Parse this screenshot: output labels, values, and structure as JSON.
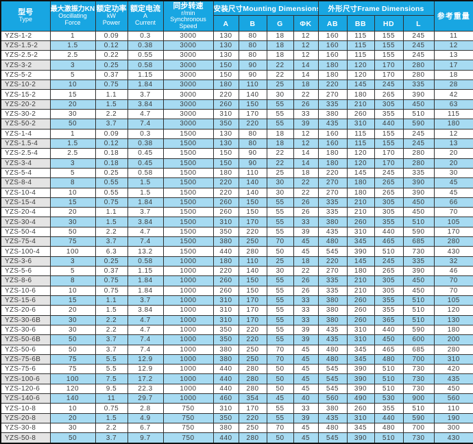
{
  "colors": {
    "header-bg": "#18a6e2",
    "row-alt-bg": "#a7dbf2",
    "name-alt-bg": "#e4e4e4",
    "header-text": "#ffffff",
    "body-text": "#3d3d3d",
    "grid-line": "#2f2f2f",
    "frame-line": "#111111"
  },
  "table": {
    "header": {
      "type": {
        "zh": "型号",
        "en": "Type"
      },
      "force": {
        "zh": "最大激振力KN",
        "en1": "Oscillating",
        "en2": "Force"
      },
      "power": {
        "zh": "额定功率",
        "unit": "kW",
        "en": "Power"
      },
      "current": {
        "zh": "额定电流",
        "unit": "A",
        "en": "Current"
      },
      "speed": {
        "zh": "同步转速",
        "unit": "r/min",
        "en1": "Synchronous",
        "en2": "Speed"
      },
      "mounting_group": "安装尺寸Mounting Dimensions",
      "frame_group": "外形尺寸Frame Dimensions",
      "mounting_cols": [
        "A",
        "B",
        "G",
        "ΦK"
      ],
      "frame_cols": [
        "AB",
        "BB",
        "HD",
        "L"
      ],
      "weight": "参考重量"
    },
    "rows": [
      [
        "YZS-1-2",
        "1",
        "0.09",
        "0.3",
        "3000",
        "130",
        "80",
        "18",
        "12",
        "160",
        "115",
        "155",
        "245",
        "11"
      ],
      [
        "YZS-1.5-2",
        "1.5",
        "0.12",
        "0.38",
        "3000",
        "130",
        "80",
        "18",
        "12",
        "160",
        "115",
        "155",
        "245",
        "12"
      ],
      [
        "YZS-2.5-2",
        "2.5",
        "0.22",
        "0.55",
        "3000",
        "130",
        "80",
        "18",
        "12",
        "160",
        "115",
        "155",
        "245",
        "13"
      ],
      [
        "YZS-3-2",
        "3",
        "0.25",
        "0.58",
        "3000",
        "150",
        "90",
        "22",
        "14",
        "180",
        "120",
        "170",
        "280",
        "17"
      ],
      [
        "YZS-5-2",
        "5",
        "0.37",
        "1.15",
        "3000",
        "150",
        "90",
        "22",
        "14",
        "180",
        "120",
        "170",
        "280",
        "18"
      ],
      [
        "YZS-10-2",
        "10",
        "0.75",
        "1.84",
        "3000",
        "180",
        "110",
        "25",
        "18",
        "220",
        "145",
        "245",
        "335",
        "28"
      ],
      [
        "YZS-15-2",
        "15",
        "1.1",
        "3.7",
        "3000",
        "220",
        "140",
        "30",
        "22",
        "270",
        "180",
        "265",
        "390",
        "42"
      ],
      [
        "YZS-20-2",
        "20",
        "1.5",
        "3.84",
        "3000",
        "260",
        "150",
        "55",
        "26",
        "335",
        "210",
        "305",
        "450",
        "63"
      ],
      [
        "YZS-30-2",
        "30",
        "2.2",
        "4.7",
        "3000",
        "310",
        "170",
        "55",
        "33",
        "380",
        "260",
        "355",
        "510",
        "115"
      ],
      [
        "YZS-50-2",
        "50",
        "3.7",
        "7.4",
        "3000",
        "350",
        "220",
        "55",
        "39",
        "435",
        "310",
        "440",
        "590",
        "180"
      ],
      [
        "YZS-1-4",
        "1",
        "0.09",
        "0.3",
        "1500",
        "130",
        "80",
        "18",
        "12",
        "160",
        "115",
        "155",
        "245",
        "12"
      ],
      [
        "YZS-1.5-4",
        "1.5",
        "0.12",
        "0.38",
        "1500",
        "130",
        "80",
        "18",
        "12",
        "160",
        "115",
        "155",
        "245",
        "13"
      ],
      [
        "YZS-2.5-4",
        "2.5",
        "0.18",
        "0.45",
        "1500",
        "150",
        "90",
        "22",
        "14",
        "180",
        "120",
        "170",
        "280",
        "20"
      ],
      [
        "YZS-3-4",
        "3",
        "0.18",
        "0.45",
        "1500",
        "150",
        "90",
        "22",
        "14",
        "180",
        "120",
        "170",
        "280",
        "20"
      ],
      [
        "YZS-5-4",
        "5",
        "0.25",
        "0.58",
        "1500",
        "180",
        "110",
        "25",
        "18",
        "220",
        "145",
        "245",
        "335",
        "30"
      ],
      [
        "YZS-8-4",
        "8",
        "0.55",
        "1.5",
        "1500",
        "220",
        "140",
        "30",
        "22",
        "270",
        "180",
        "265",
        "390",
        "45"
      ],
      [
        "YZS-10-4",
        "10",
        "0.55",
        "1.5",
        "1500",
        "220",
        "140",
        "30",
        "22",
        "270",
        "180",
        "265",
        "390",
        "45"
      ],
      [
        "YZS-15-4",
        "15",
        "0.75",
        "1.84",
        "1500",
        "260",
        "150",
        "55",
        "26",
        "335",
        "210",
        "305",
        "450",
        "66"
      ],
      [
        "YZS-20-4",
        "20",
        "1.1",
        "3.7",
        "1500",
        "260",
        "150",
        "55",
        "26",
        "335",
        "210",
        "305",
        "450",
        "70"
      ],
      [
        "YZS-30-4",
        "30",
        "1.5",
        "3.84",
        "1500",
        "310",
        "170",
        "55",
        "33",
        "380",
        "260",
        "355",
        "510",
        "105"
      ],
      [
        "YZS-50-4",
        "50",
        "2.2",
        "4.7",
        "1500",
        "350",
        "220",
        "55",
        "39",
        "435",
        "310",
        "440",
        "590",
        "170"
      ],
      [
        "YZS-75-4",
        "75",
        "3.7",
        "7.4",
        "1500",
        "380",
        "250",
        "70",
        "45",
        "480",
        "345",
        "465",
        "685",
        "280"
      ],
      [
        "YZS-100-4",
        "100",
        "6.3",
        "13.2",
        "1500",
        "440",
        "280",
        "50",
        "45",
        "545",
        "390",
        "510",
        "730",
        "430"
      ],
      [
        "YZS-3-6",
        "3",
        "0.25",
        "0.58",
        "1000",
        "180",
        "110",
        "25",
        "18",
        "220",
        "145",
        "245",
        "335",
        "32"
      ],
      [
        "YZS-5-6",
        "5",
        "0.37",
        "1.15",
        "1000",
        "220",
        "140",
        "30",
        "22",
        "270",
        "180",
        "265",
        "390",
        "46"
      ],
      [
        "YZS-8-6",
        "8",
        "0.75",
        "1.84",
        "1000",
        "260",
        "150",
        "55",
        "26",
        "335",
        "210",
        "305",
        "450",
        "70"
      ],
      [
        "YZS-10-6",
        "10",
        "0.75",
        "1.84",
        "1000",
        "260",
        "150",
        "55",
        "26",
        "335",
        "210",
        "305",
        "450",
        "70"
      ],
      [
        "YZS-15-6",
        "15",
        "1.1",
        "3.7",
        "1000",
        "310",
        "170",
        "55",
        "33",
        "380",
        "260",
        "355",
        "510",
        "105"
      ],
      [
        "YZS-20-6",
        "20",
        "1.5",
        "3.84",
        "1000",
        "310",
        "170",
        "55",
        "33",
        "380",
        "260",
        "355",
        "510",
        "120"
      ],
      [
        "YZS-30-6B",
        "30",
        "2.2",
        "4.7",
        "1000",
        "310",
        "170",
        "55",
        "33",
        "380",
        "260",
        "365",
        "510",
        "130"
      ],
      [
        "YZS-30-6",
        "30",
        "2.2",
        "4.7",
        "1000",
        "350",
        "220",
        "55",
        "39",
        "435",
        "310",
        "440",
        "590",
        "180"
      ],
      [
        "YZS-50-6B",
        "50",
        "3.7",
        "7.4",
        "1000",
        "350",
        "220",
        "55",
        "39",
        "435",
        "310",
        "450",
        "600",
        "200"
      ],
      [
        "YZS-50-6",
        "50",
        "3.7",
        "7.4",
        "1000",
        "380",
        "250",
        "70",
        "45",
        "480",
        "345",
        "465",
        "685",
        "280"
      ],
      [
        "YZS-75-6B",
        "75",
        "5.5",
        "12.9",
        "1000",
        "380",
        "250",
        "70",
        "45",
        "480",
        "345",
        "480",
        "700",
        "310"
      ],
      [
        "YZS-75-6",
        "75",
        "5.5",
        "12.9",
        "1000",
        "440",
        "280",
        "50",
        "45",
        "545",
        "390",
        "510",
        "730",
        "420"
      ],
      [
        "YZS-100-6",
        "100",
        "7.5",
        "17.2",
        "1000",
        "440",
        "280",
        "50",
        "45",
        "545",
        "390",
        "510",
        "730",
        "435"
      ],
      [
        "YZS-120-6",
        "120",
        "9.5",
        "22.3",
        "1000",
        "440",
        "280",
        "50",
        "45",
        "545",
        "390",
        "510",
        "730",
        "450"
      ],
      [
        "YZS-140-6",
        "140",
        "11",
        "29.7",
        "1000",
        "460",
        "354",
        "45",
        "40",
        "560",
        "490",
        "530",
        "900",
        "560"
      ],
      [
        "YZS-10-8",
        "10",
        "0.75",
        "2.8",
        "750",
        "310",
        "170",
        "55",
        "33",
        "380",
        "260",
        "355",
        "510",
        "110"
      ],
      [
        "YZS-20-8",
        "20",
        "1.5",
        "4.9",
        "750",
        "350",
        "220",
        "55",
        "39",
        "435",
        "310",
        "440",
        "590",
        "190"
      ],
      [
        "YZS-30-8",
        "30",
        "2.2",
        "6.7",
        "750",
        "380",
        "250",
        "70",
        "45",
        "480",
        "345",
        "480",
        "700",
        "300"
      ],
      [
        "YZS-50-8",
        "50",
        "3.7",
        "9.7",
        "750",
        "440",
        "280",
        "50",
        "45",
        "545",
        "390",
        "510",
        "730",
        "430"
      ]
    ]
  }
}
